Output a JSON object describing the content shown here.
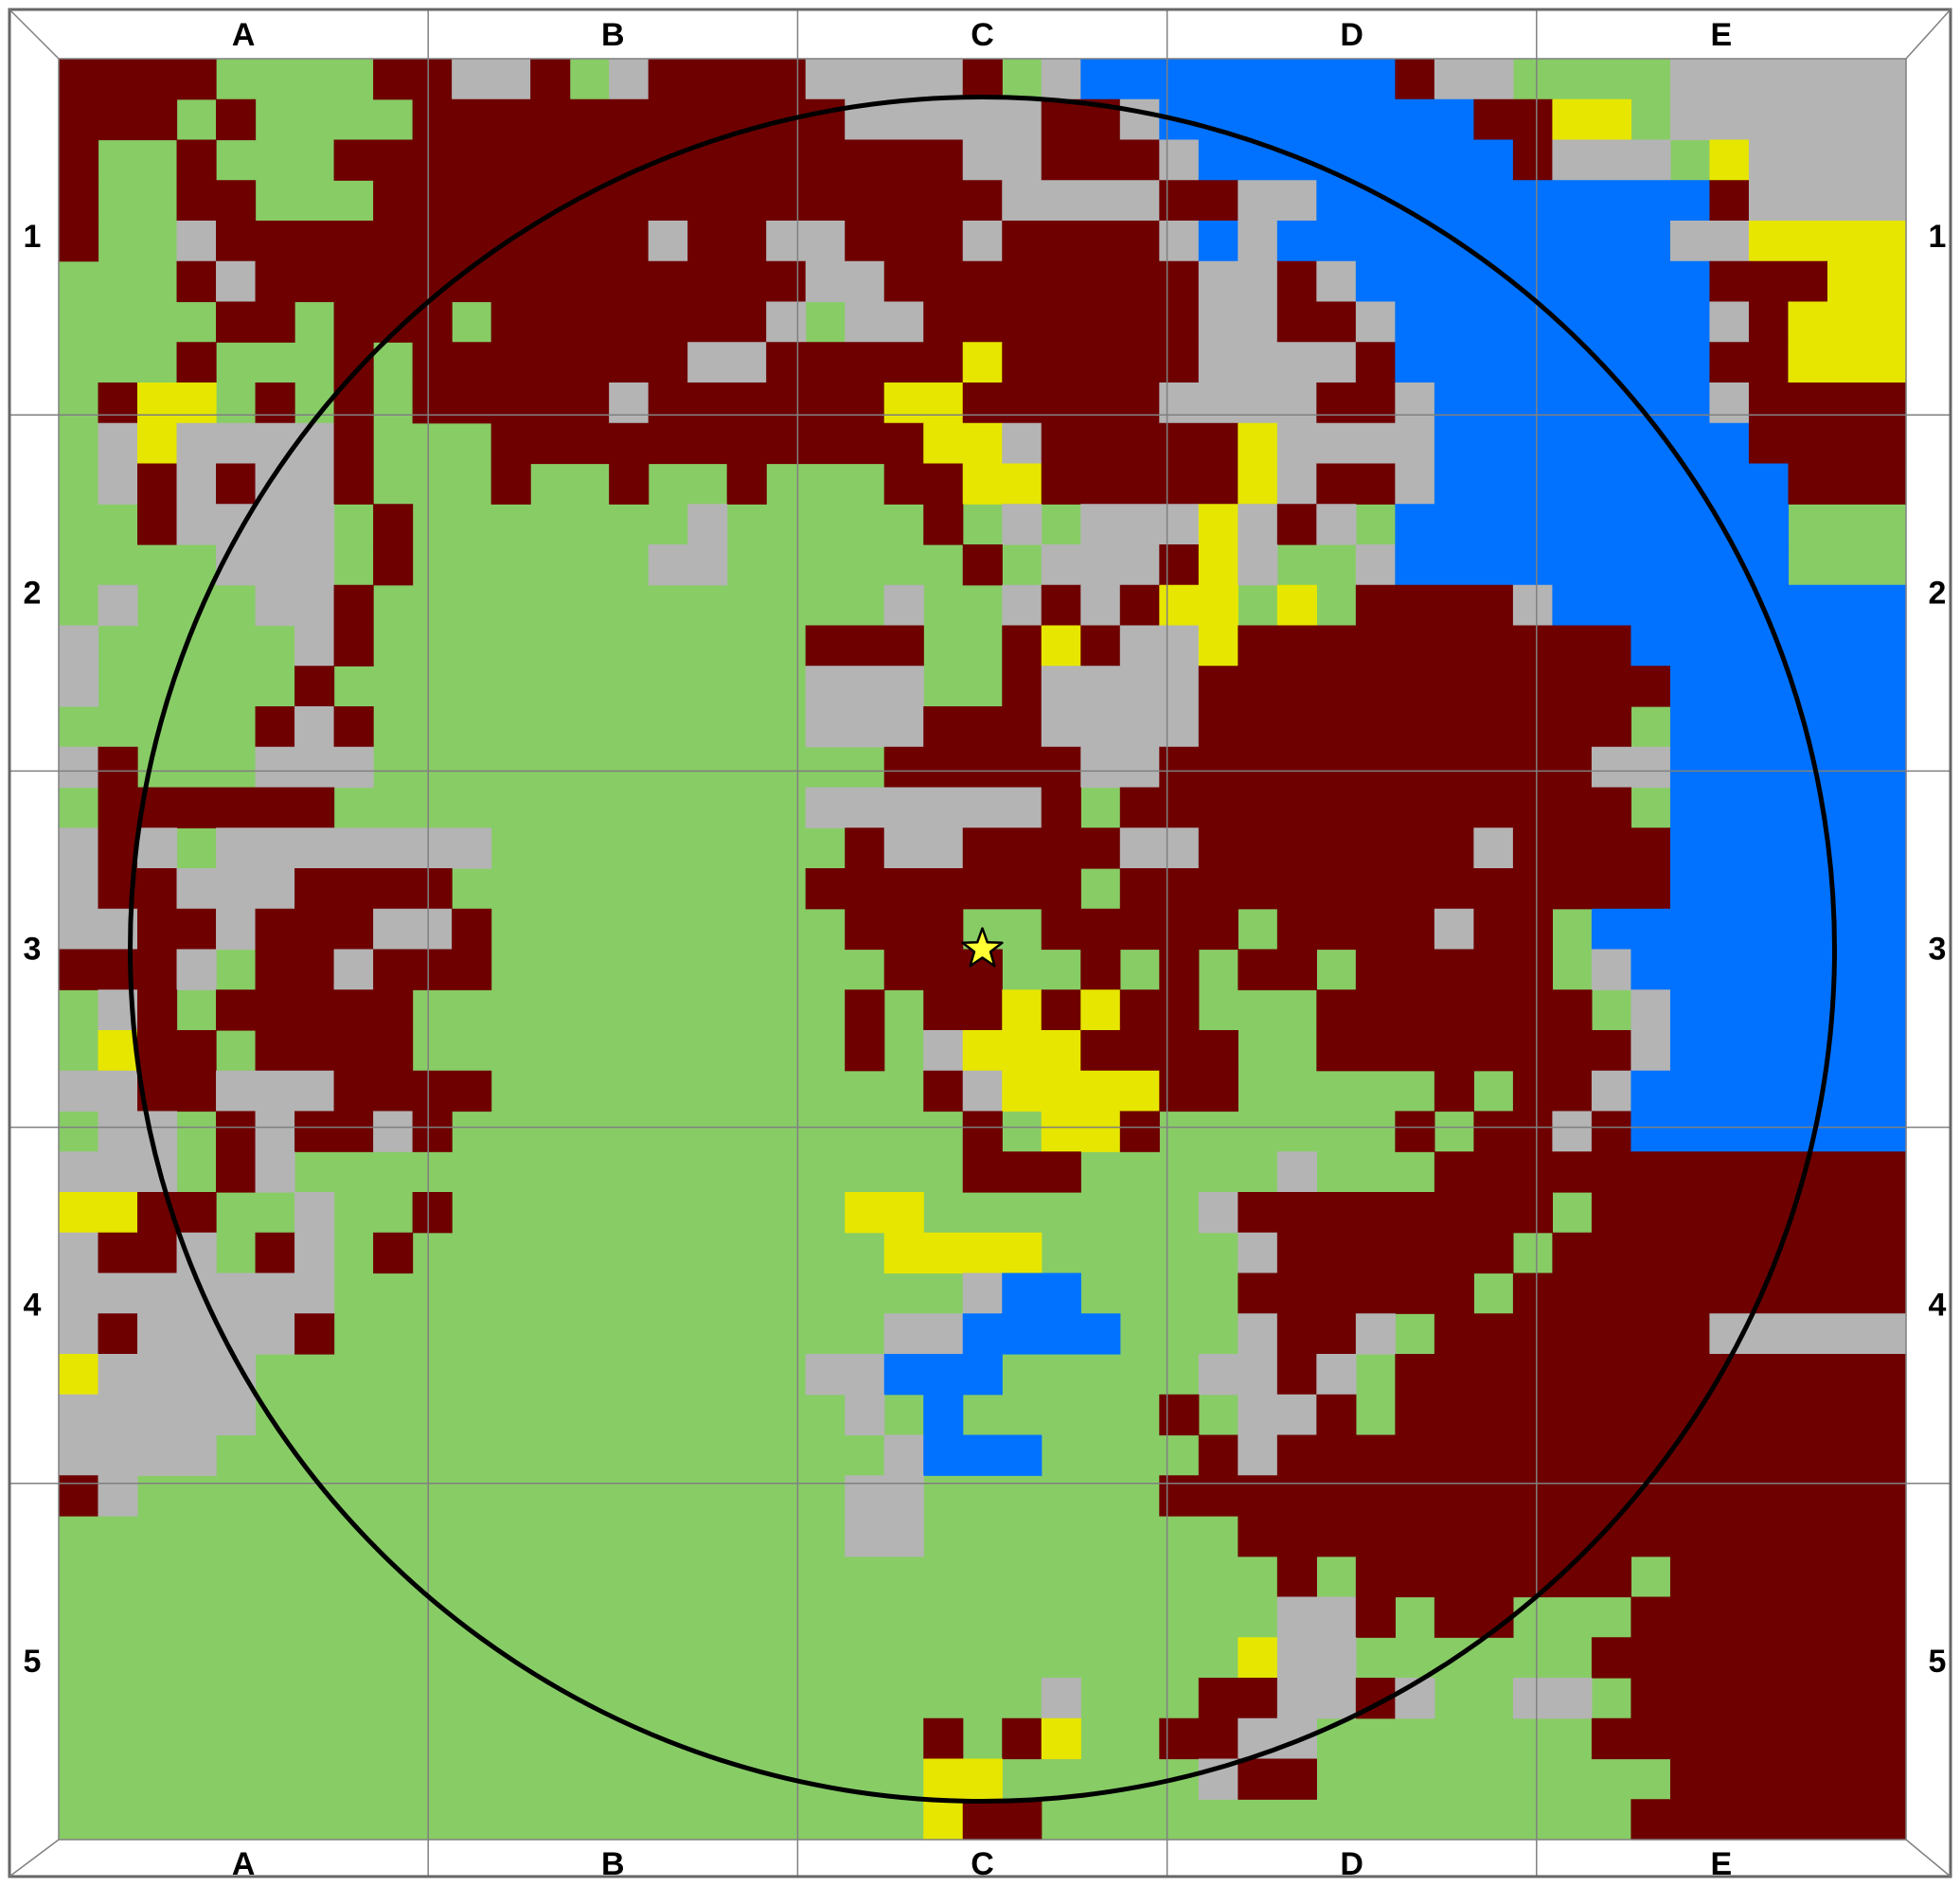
{
  "map": {
    "columns": [
      "A",
      "B",
      "C",
      "D",
      "E"
    ],
    "rows": [
      "1",
      "2",
      "3",
      "4",
      "5"
    ],
    "colors": {
      "grass": "#88cc66",
      "forest": "#6e0000",
      "rock": "#b4b4b4",
      "sand": "#e6e600",
      "water": "#0072ff",
      "grid_line": "#808080",
      "border": "#666666",
      "circle": "#000000",
      "marker_fill": "#ffff33",
      "marker_stroke": "#000000"
    },
    "legend_key": {
      "g": "grass",
      "f": "forest",
      "r": "rock",
      "s": "sand",
      "w": "water"
    },
    "marker": {
      "icon": "star-icon",
      "column": "C",
      "row": "3"
    },
    "terrain": [
      "ffffggggffrrfgrffffrrrrfgrwwwwwwwwfrrggggr",
      "fffgfggggfffffffffffrrrrrffrwwwwwwwwffssgr",
      "fggfgggffffffffffffffffrrfffrwwwwwwwwfrrrgsr",
      "fggffgggffffffffffffffffrrrrffrrwwwwwwwwwwfr",
      "fggrfffffffffffrffrrfffrffffrwrwwwwwwwwwwrrss",
      "gggfrffffffffffffffrrffffffffrrfrwwwwwwwwwfffs",
      "ggggffgfffgfffffffrgrrfffffffrrffrwwwwwwwwrfs",
      "gggfgggfgfffffffrrfffffsfffffrrrrfwwwwwwwwffs",
      "gfssgfgfgfffffrffffffssfffffrrrrffrwwwwwwwrf",
      "grsrrrrfgggfffffffffffssrfffffsrrrrwwwwwwwwff",
      "grfrfrrfgggfggfggfgggffssfffffsrffrwwwwwwwwwf",
      "ggfrrrrgfgggggggrgggggfgrgrrrsrfrgwwwwwwwwwwg",
      "ggggrrrgfggggggrrggggggfgrrrfsrggrwwwwwwwwwwg",
      "grgggrrfgggggggggggggrggrfrfssgsgffffrwwwwwwww",
      "rgggggrfgggggggggggfffggfsfrrsffffffffffwwwwww",
      "rgggggfggggggggggggrrrggfrrrrffffffffffffwwwwww",
      "gggggfrfgggggggggggrrrfffrrrrfffffffffffgwwwww",
      "rfgggrrrgggggggggggggfffffrrfffffffffffrrwwww",
      "gffffffggggggggggggrrrrrrfgfffffffffffffgwwww",
      "rfrgrrrrrrrgggggggggfrrffffrrfffffffrffffwww",
      "rffrrrffffgggggggggfffffffgffffffffffffffwww",
      "rrffrfffrrfgggggggggfffggfffffgffffrffgwwww",
      "fffrgffrfffggggggggggfffggfgfgffgfffffgrww",
      "grfgfffffgggggggggggfgffsfsffgggfffffffgrw",
      "gsffgffffgggggggggggfgrsssffffggffffffffrw",
      "rrffrrrffffgggggggggggfrssssffgggggfgffrww",
      "grrgfrffrfgggggggggggggfgssfggggggfgffrfw",
      "rrrgfrgggggggggggggggggfffgggggrgggfffffff",
      "ssffggrggfggggggggggssgggggggrffffffffgfff",
      "rffrgfrgfggggggggggggssssgggggrffffffgffff",
      "rrrrrrrggggggggggggggggrwwggggffffffgffffff",
      "rfrrrrfggggggggggggggrrwwwwgggrffrgfffffffr",
      "srrrrggggggggggggggrrwwwgggggrrfrgfffffffff",
      "rrrrrgggggggggggggggrgwgggggfgrrfgfffffffff",
      "rrrrgggggggggggggggggrwwwggggfrfffffffffffff",
      "frggggggggggggggggggrrggggggfffffffffffffff",
      "ggggggggggggggggggggrrggggggggfffffffffffff",
      "gggggggggggggggggggggggggggggggfgfffffffgff",
      "gggggggggggggggggggggggggggggggrrfgffgggfff",
      "ggggggggggggggggggggggggggggggsrrggggggffff",
      "gggggggggggggggggggggggggrgggffrrfrggrrgfff",
      "ggggggggggggggggggggggfgfsggffrrgggggggffff",
      "ggggggggggggggggggggggssgggggrffgggggggggff",
      "ggggggggggggggggggggggsffgggggggggggggggfff"
    ]
  }
}
